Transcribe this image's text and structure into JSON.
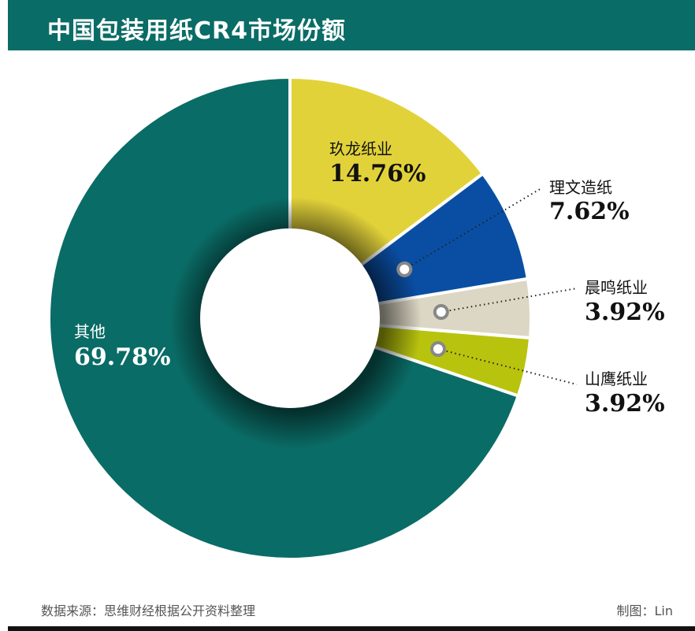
{
  "title": "中国包装用纸CR4市场份额",
  "footer": {
    "source": "数据来源：思维财经根据公开资料整理",
    "credit": "制图：Lin"
  },
  "chart_data": {
    "type": "pie",
    "donut": true,
    "title": "中国包装用纸CR4市场份额",
    "slices": [
      {
        "label": "玖龙纸业",
        "value": 14.76,
        "value_label": "14.76%",
        "color": "#e2d23a"
      },
      {
        "label": "理文造纸",
        "value": 7.62,
        "value_label": "7.62%",
        "color": "#0a4ea3"
      },
      {
        "label": "晨鸣纸业",
        "value": 3.92,
        "value_label": "3.92%",
        "color": "#dcd6c4"
      },
      {
        "label": "山鹰纸业",
        "value": 3.92,
        "value_label": "3.92%",
        "color": "#b8c30e"
      },
      {
        "label": "其他",
        "value": 69.78,
        "value_label": "69.78%",
        "color": "#0a6c66"
      }
    ]
  }
}
